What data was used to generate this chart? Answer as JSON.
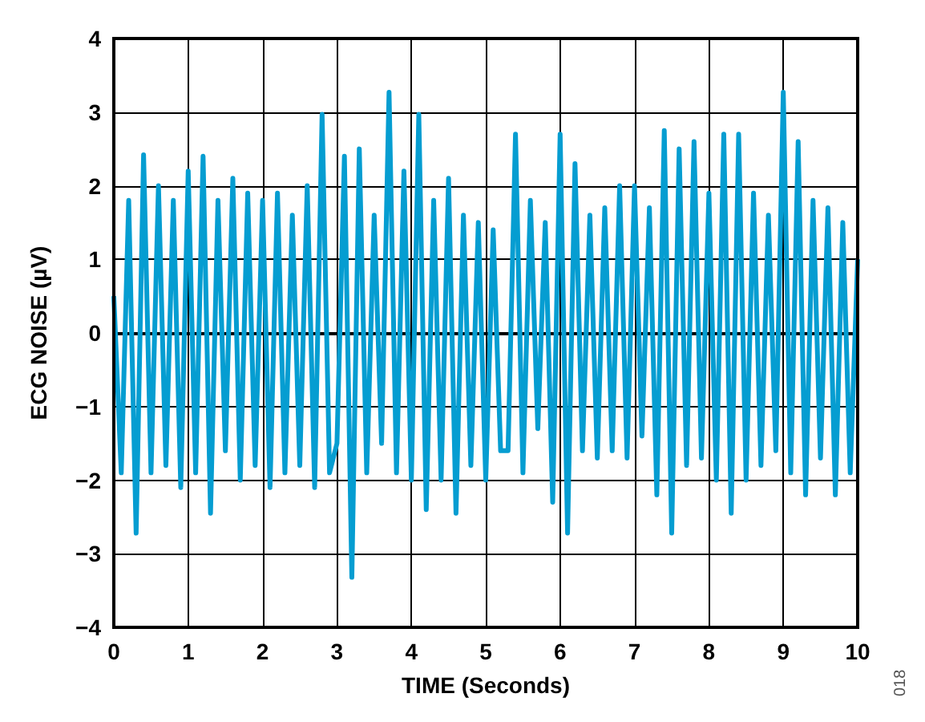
{
  "chart_data": {
    "type": "line",
    "xlabel": "TIME (Seconds)",
    "ylabel": "ECG NOISE (µV)",
    "annotations": [
      "018"
    ],
    "x": [
      0,
      0.1,
      0.2,
      0.3,
      0.4,
      0.5,
      0.6,
      0.7,
      0.8,
      0.9,
      1,
      1.1,
      1.2,
      1.3,
      1.4,
      1.5,
      1.6,
      1.7,
      1.8,
      1.9,
      2,
      2.1,
      2.2,
      2.3,
      2.4,
      2.5,
      2.6,
      2.7,
      2.8,
      2.9,
      3,
      3.1,
      3.2,
      3.3,
      3.4,
      3.5,
      3.6,
      3.7,
      3.8,
      3.9,
      4,
      4.1,
      4.2,
      4.3,
      4.4,
      4.5,
      4.6,
      4.7,
      4.8,
      4.9,
      5,
      5.1,
      5.2,
      5.3,
      5.4,
      5.5,
      5.6,
      5.7,
      5.8,
      5.9,
      6,
      6.1,
      6.2,
      6.3,
      6.4,
      6.5,
      6.6,
      6.7,
      6.8,
      6.9,
      7,
      7.1,
      7.2,
      7.3,
      7.4,
      7.5,
      7.6,
      7.7,
      7.8,
      7.9,
      8,
      8.1,
      8.2,
      8.3,
      8.4,
      8.5,
      8.6,
      8.7,
      8.8,
      8.9,
      9,
      9.1,
      9.2,
      9.3,
      9.4,
      9.5,
      9.6,
      9.7,
      9.8,
      9.9,
      10
    ],
    "series": [
      {
        "color": "#059dd1",
        "values": [
          0.5,
          -1.9,
          1.8,
          -2.72,
          2.42,
          -1.9,
          2.0,
          -1.8,
          1.8,
          -2.1,
          2.2,
          -1.9,
          2.4,
          -2.45,
          1.8,
          -1.6,
          2.1,
          -2.0,
          1.9,
          -1.8,
          1.8,
          -2.1,
          1.9,
          -1.9,
          1.6,
          -1.8,
          2.0,
          -2.1,
          2.97,
          -1.9,
          -1.5,
          2.4,
          -3.32,
          2.5,
          -1.9,
          1.6,
          -1.5,
          3.27,
          -1.9,
          2.2,
          -2.0,
          2.97,
          -2.4,
          1.8,
          -2.0,
          2.1,
          -2.45,
          1.6,
          -1.8,
          1.5,
          -2.0,
          1.4,
          -1.6,
          -1.6,
          2.7,
          -1.9,
          1.8,
          -1.3,
          1.5,
          -2.3,
          2.7,
          -2.72,
          2.3,
          -1.6,
          1.6,
          -1.7,
          1.7,
          -1.6,
          2.0,
          -1.7,
          2.0,
          -1.4,
          1.7,
          -2.2,
          2.75,
          -2.72,
          2.5,
          -1.8,
          2.6,
          -1.7,
          1.9,
          -2.0,
          2.7,
          -2.45,
          2.7,
          -2.0,
          1.9,
          -1.8,
          1.6,
          -1.6,
          3.27,
          -1.9,
          2.6,
          -2.2,
          1.8,
          -1.7,
          1.7,
          -2.2,
          1.5,
          -1.9,
          1.0
        ]
      }
    ],
    "xlim": [
      0,
      10
    ],
    "xticks": [
      0,
      1,
      2,
      3,
      4,
      5,
      6,
      7,
      8,
      9,
      10
    ],
    "ylim": [
      -4,
      4
    ],
    "yticks": [
      -4,
      -3,
      -2,
      -1,
      0,
      1,
      2,
      3,
      4
    ],
    "grid": true,
    "marker": "none",
    "line_style": "solid"
  }
}
